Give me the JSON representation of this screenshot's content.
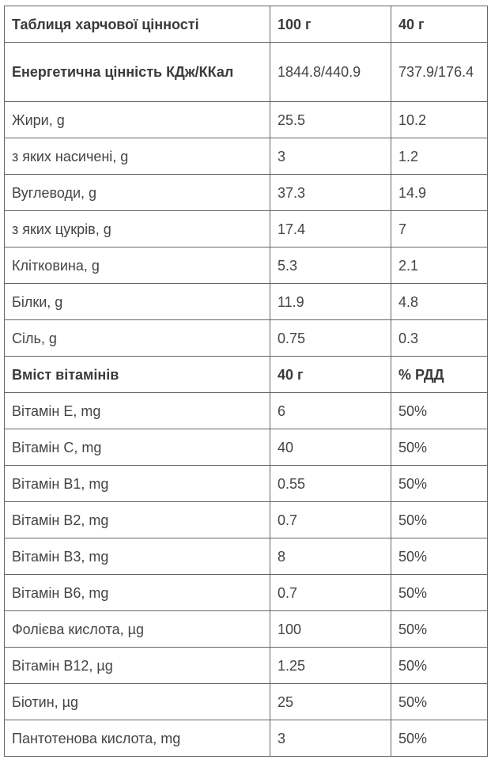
{
  "table": {
    "header": [
      "Таблиця харчової цінності",
      "100 г",
      "40 г"
    ],
    "energy": [
      "Енергетична цінність КДж/ККал",
      "1844.8/440.9",
      "737.9/176.4"
    ],
    "nutrition_rows": [
      [
        "Жири, g",
        "25.5",
        "10.2"
      ],
      [
        "з яких насичені, g",
        "3",
        "1.2"
      ],
      [
        "Вуглеводи, g",
        "37.3",
        "14.9"
      ],
      [
        "з яких цукрів, g",
        "17.4",
        "7"
      ],
      [
        "Клітковина, g",
        "5.3",
        "2.1"
      ],
      [
        "Білки, g",
        "11.9",
        "4.8"
      ],
      [
        "Сіль, g",
        "0.75",
        "0.3"
      ]
    ],
    "vitamin_header": [
      "Вміст вітамінів",
      "40 г",
      "% РДД"
    ],
    "vitamin_rows": [
      [
        "Вітамін E, mg",
        "6",
        "50%"
      ],
      [
        "Вітамін C, mg",
        "40",
        "50%"
      ],
      [
        "Вітамін B1, mg",
        "0.55",
        "50%"
      ],
      [
        "Вітамін B2, mg",
        "0.7",
        "50%"
      ],
      [
        "Вітамін B3, mg",
        "8",
        "50%"
      ],
      [
        "Вітамін B6, mg",
        "0.7",
        "50%"
      ],
      [
        "Фолієва кислота, µg",
        "100",
        "50%"
      ],
      [
        "Вітамін B12, µg",
        "1.25",
        "50%"
      ],
      [
        "Біотин, µg",
        "25",
        "50%"
      ],
      [
        "Пантотенова кислота, mg",
        "3",
        "50%"
      ]
    ]
  }
}
